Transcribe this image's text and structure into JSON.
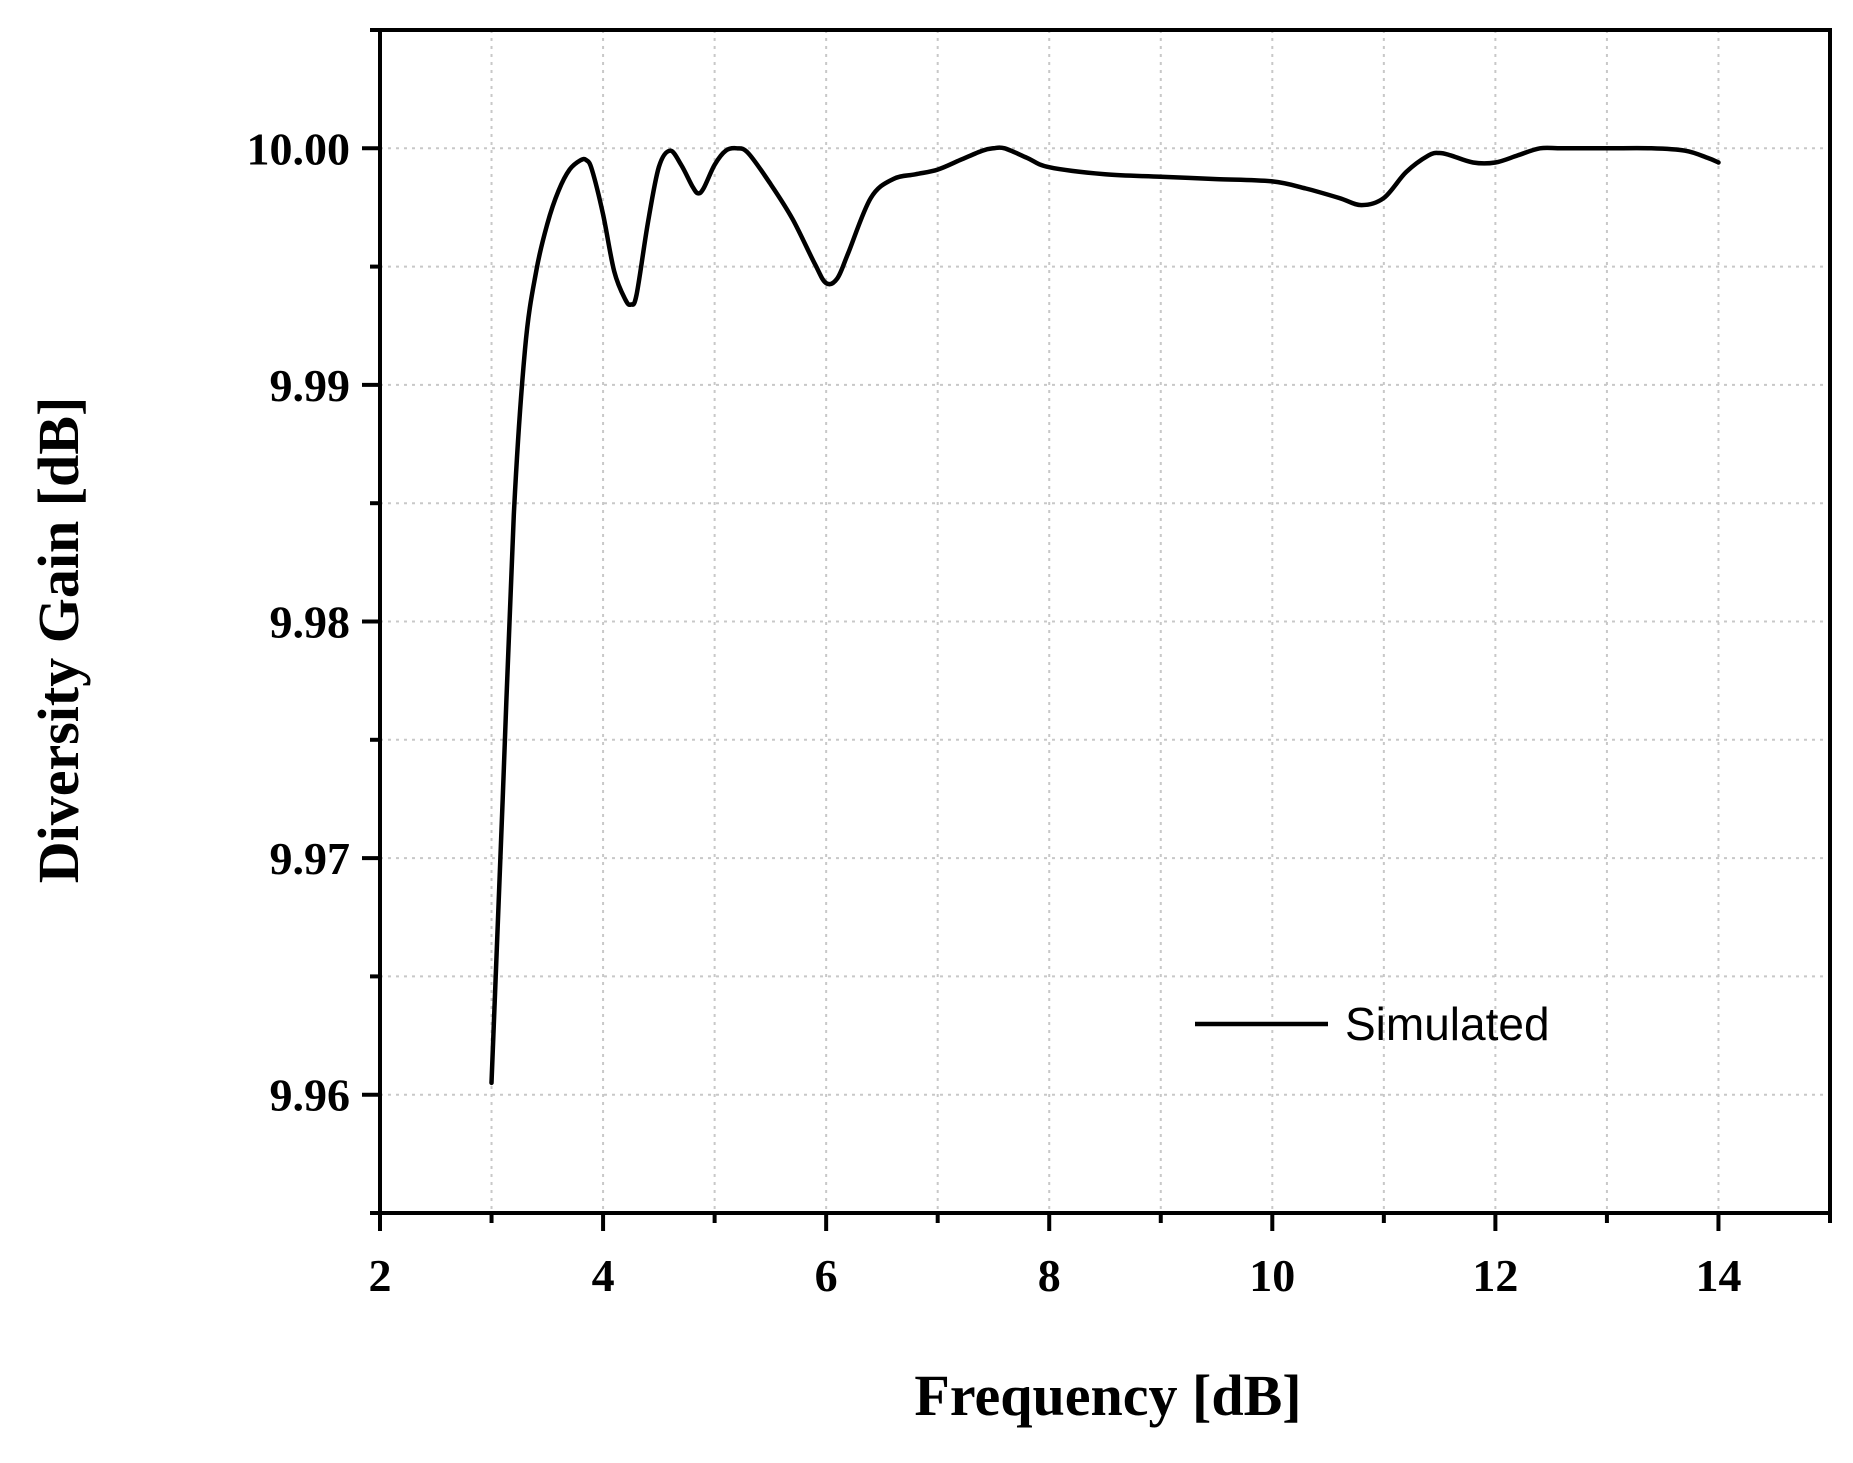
{
  "chart_data": {
    "type": "line",
    "title": "",
    "xlabel": "Frequency [dB]",
    "ylabel": "Diversity Gain [dB]",
    "xlim": [
      2,
      15
    ],
    "ylim": [
      9.955,
      10.005
    ],
    "x_ticks": [
      2,
      4,
      6,
      8,
      10,
      12,
      14
    ],
    "x_tick_labels": [
      "2",
      "4",
      "6",
      "8",
      "10",
      "12",
      "14"
    ],
    "x_minor_ticks": [
      3,
      5,
      7,
      9,
      11,
      13,
      15
    ],
    "y_ticks": [
      9.96,
      9.97,
      9.98,
      9.99,
      10.0
    ],
    "y_tick_labels": [
      "9.96",
      "9.97",
      "9.98",
      "9.99",
      "10.00"
    ],
    "y_minor_ticks": [
      9.955,
      9.965,
      9.975,
      9.985,
      9.995,
      10.005
    ],
    "grid": true,
    "legend": {
      "position": "lower-right",
      "entries": [
        "Simulated"
      ]
    },
    "series": [
      {
        "name": "Simulated",
        "color": "#000000",
        "x": [
          3.0,
          3.1,
          3.2,
          3.3,
          3.4,
          3.5,
          3.6,
          3.7,
          3.8,
          3.85,
          3.9,
          4.0,
          4.1,
          4.2,
          4.25,
          4.3,
          4.4,
          4.5,
          4.6,
          4.7,
          4.8,
          4.85,
          4.9,
          5.0,
          5.1,
          5.2,
          5.3,
          5.5,
          5.7,
          5.9,
          6.0,
          6.1,
          6.2,
          6.4,
          6.6,
          6.8,
          7.0,
          7.2,
          7.4,
          7.5,
          7.6,
          7.8,
          8.0,
          8.5,
          9.0,
          9.5,
          10.0,
          10.3,
          10.6,
          10.8,
          11.0,
          11.2,
          11.4,
          11.5,
          11.6,
          11.8,
          12.0,
          12.2,
          12.4,
          12.6,
          13.0,
          13.4,
          13.7,
          13.9,
          14.0
        ],
        "y": [
          9.9605,
          9.9725,
          9.9845,
          9.9915,
          9.9948,
          9.9968,
          9.9982,
          9.9991,
          9.9995,
          9.9995,
          9.9991,
          9.9972,
          9.9948,
          9.9936,
          9.9934,
          9.9938,
          9.9968,
          9.9992,
          9.9999,
          9.9993,
          9.9984,
          9.9981,
          9.9983,
          9.9993,
          9.9999,
          10.0,
          9.9998,
          9.9985,
          9.997,
          9.9951,
          9.9943,
          9.9945,
          9.9956,
          9.9979,
          9.9987,
          9.9989,
          9.9991,
          9.9995,
          9.9999,
          10.0,
          10.0,
          9.9996,
          9.9992,
          9.9989,
          9.9988,
          9.9987,
          9.9986,
          9.9983,
          9.9979,
          9.9976,
          9.9979,
          9.999,
          9.9997,
          9.9998,
          9.9997,
          9.9994,
          9.9994,
          9.9997,
          10.0,
          10.0,
          10.0,
          10.0,
          9.9999,
          9.9996,
          9.9994
        ]
      }
    ]
  }
}
